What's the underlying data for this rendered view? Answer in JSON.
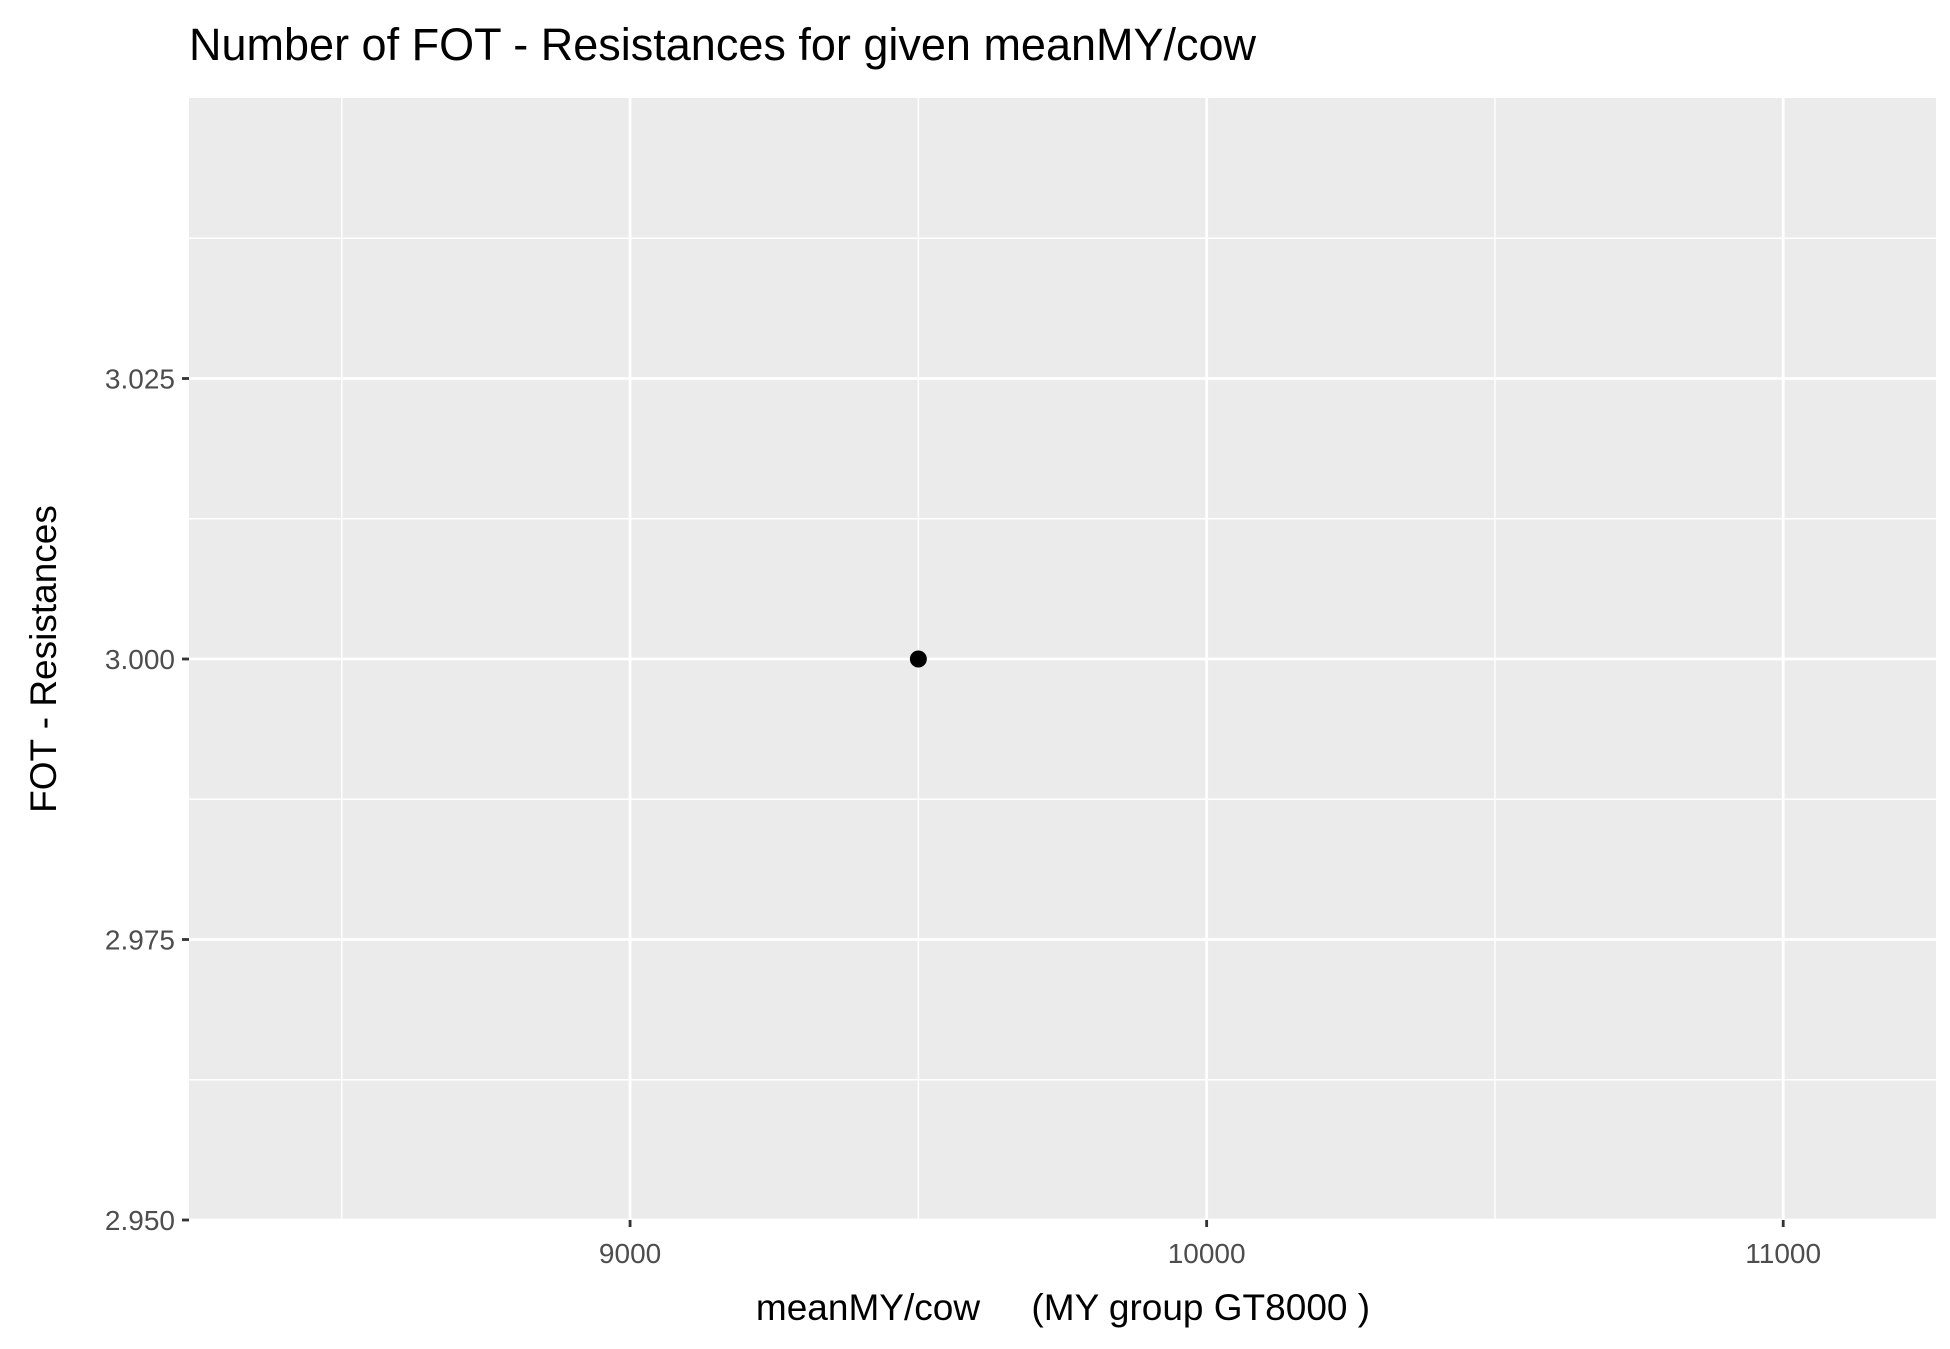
{
  "chart_data": {
    "type": "scatter",
    "title": "Number of FOT - Resistances for given meanMY/cow",
    "xlabel": "meanMY/cow     (MY group GT8000 )",
    "ylabel": "FOT - Resistances",
    "xlim": [
      8235,
      11265
    ],
    "ylim": [
      2.95,
      3.05
    ],
    "x_ticks": [
      9000,
      10000,
      11000
    ],
    "x_tick_labels": [
      "9000",
      "10000",
      "11000"
    ],
    "x_minor_ticks": [
      8500,
      9500,
      10500
    ],
    "y_ticks": [
      2.95,
      2.975,
      3.0,
      3.025
    ],
    "y_tick_labels": [
      "2.950",
      "2.975",
      "3.000",
      "3.025"
    ],
    "y_minor_ticks": [
      2.9625,
      2.9875,
      3.0125,
      3.0375
    ],
    "grid": true,
    "legend": "none",
    "points": [
      {
        "x": 9500,
        "y": 3.0
      }
    ],
    "colors": {
      "panel_background": "#ebebeb",
      "grid_line": "#ffffff",
      "point": "#000000",
      "tick_text": "#4d4d4d",
      "axis_tick": "#333333"
    }
  }
}
